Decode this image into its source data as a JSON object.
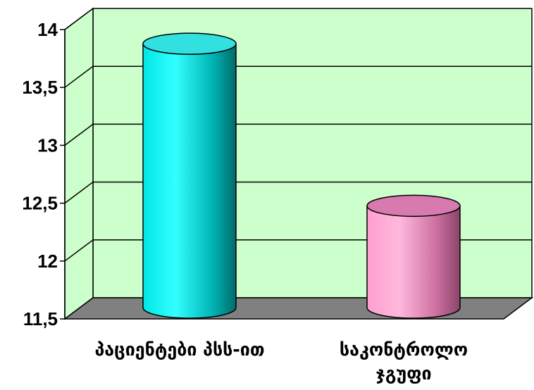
{
  "chart_data": {
    "type": "bar",
    "style": "3d-cylinder",
    "categories": [
      "პაციენტები პსს-ით",
      "საკონტროლო ჯგუფი"
    ],
    "values": [
      13.78,
      12.38
    ],
    "ylim": [
      11.5,
      14
    ],
    "yticks": [
      11.5,
      12,
      12.5,
      13,
      13.5,
      14
    ],
    "ytick_labels": [
      "11,5",
      "12",
      "12,5",
      "13",
      "13,5",
      "14"
    ],
    "grid": true,
    "legend": "none",
    "colors": {
      "wall": "#ccffcc",
      "floor": "#808080",
      "bar_1": "#00cccc",
      "bar_2": "#ff99cc"
    }
  }
}
